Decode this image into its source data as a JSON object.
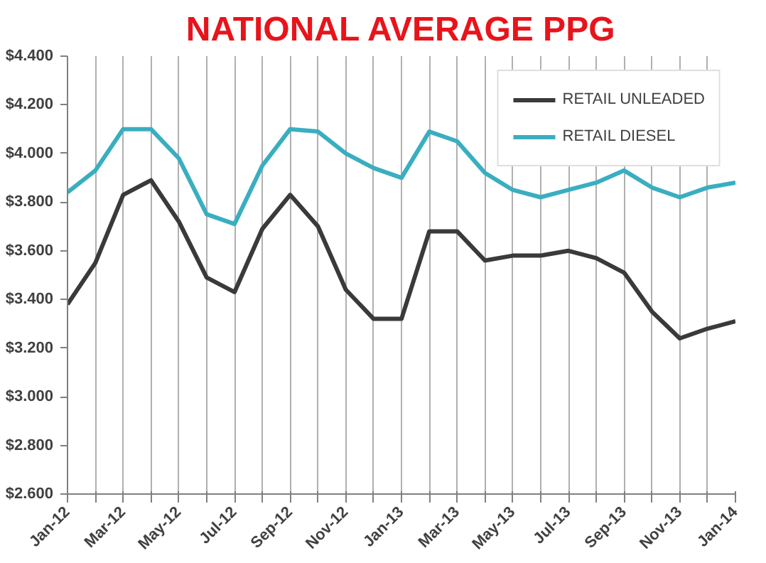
{
  "chart_data": {
    "type": "line",
    "title": "NATIONAL AVERAGE PPG",
    "categories": [
      "Jan-12",
      null,
      "Mar-12",
      null,
      "May-12",
      null,
      "Jul-12",
      null,
      "Sep-12",
      null,
      "Nov-12",
      null,
      "Jan-13",
      null,
      "Mar-13",
      null,
      "May-13",
      null,
      "Jul-13",
      null,
      "Sep-13",
      null,
      "Nov-13",
      null,
      "Jan-14"
    ],
    "series": [
      {
        "name": "RETAIL UNLEADED",
        "color": "#3a3a3a",
        "values": [
          3.38,
          3.55,
          3.83,
          3.89,
          3.72,
          3.49,
          3.43,
          3.69,
          3.83,
          3.7,
          3.44,
          3.32,
          3.32,
          3.68,
          3.68,
          3.56,
          3.58,
          3.58,
          3.6,
          3.57,
          3.51,
          3.35,
          3.24,
          3.28,
          3.31
        ]
      },
      {
        "name": "RETAIL DIESEL",
        "color": "#3aaec0",
        "values": [
          3.84,
          3.93,
          4.1,
          4.1,
          3.98,
          3.75,
          3.71,
          3.95,
          4.1,
          4.09,
          4.0,
          3.94,
          3.9,
          4.09,
          4.05,
          3.92,
          3.85,
          3.82,
          3.85,
          3.88,
          3.93,
          3.86,
          3.82,
          3.86,
          3.88
        ]
      }
    ],
    "ylim": [
      2.6,
      4.4
    ],
    "yticks": [
      {
        "value": 2.6,
        "label": "$2.600"
      },
      {
        "value": 2.8,
        "label": "$2.800"
      },
      {
        "value": 3.0,
        "label": "$3.000"
      },
      {
        "value": 3.2,
        "label": "$3.200"
      },
      {
        "value": 3.4,
        "label": "$3.400"
      },
      {
        "value": 3.6,
        "label": "$3.600"
      },
      {
        "value": 3.8,
        "label": "$3.800"
      },
      {
        "value": 4.0,
        "label": "$4.000"
      },
      {
        "value": 4.2,
        "label": "$4.200"
      },
      {
        "value": 4.4,
        "label": "$4.400"
      }
    ],
    "grid": "x",
    "legend": "top right",
    "marker": "none",
    "line_style": "solid"
  }
}
